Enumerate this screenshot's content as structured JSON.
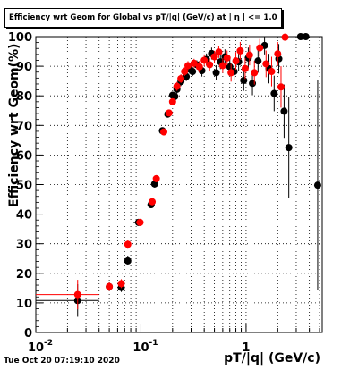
{
  "chart_data": {
    "type": "scatter",
    "title": "Efficiency wrt Geom for Global vs pT/|q| (GeV/c) at | η | <= 1.0",
    "xlabel": "pT/|q| (GeV/c)",
    "ylabel": "Efficiency wrt Geom(%)",
    "xscale": "log",
    "xlim": [
      0.01,
      5.3
    ],
    "ylim": [
      0,
      100
    ],
    "xticks": [
      {
        "value": 0.01,
        "label": "10"
      },
      {
        "value": 0.1,
        "label": "10"
      },
      {
        "value": 1,
        "label": "1"
      }
    ],
    "yticks": [
      0,
      10,
      20,
      30,
      40,
      50,
      60,
      70,
      80,
      90,
      100
    ],
    "grid": true,
    "legend": false,
    "series": [
      {
        "color": "#000000",
        "points": [
          {
            "x": 0.025,
            "y": 10.8,
            "xerr": [
              0.01,
              0.04
            ],
            "yerr": 5.5
          },
          {
            "x": 0.05,
            "y": 15.5,
            "yerr": 1.5
          },
          {
            "x": 0.065,
            "y": 15.2,
            "yerr": 1.5
          },
          {
            "x": 0.075,
            "y": 24.2,
            "yerr": 1.5
          },
          {
            "x": 0.095,
            "y": 37.2,
            "xerr": [
              0.085,
              0.105
            ],
            "yerr": 1.2
          },
          {
            "x": 0.125,
            "y": 43.2,
            "xerr": [
              0.115,
              0.135
            ],
            "yerr": 1.2
          },
          {
            "x": 0.135,
            "y": 50.2,
            "yerr": 1.2
          },
          {
            "x": 0.16,
            "y": 68.2,
            "yerr": 1.0
          },
          {
            "x": 0.18,
            "y": 73.8,
            "yerr": 1.0
          },
          {
            "x": 0.2,
            "y": 80.2,
            "yerr": 1.2
          },
          {
            "x": 0.21,
            "y": 79.8,
            "yerr": 1.2
          },
          {
            "x": 0.22,
            "y": 82.2,
            "yerr": 1.5
          },
          {
            "x": 0.24,
            "y": 84.8,
            "yerr": 1.5
          },
          {
            "x": 0.27,
            "y": 86.5,
            "yerr": 1.5
          },
          {
            "x": 0.29,
            "y": 89.0,
            "yerr": 1.5
          },
          {
            "x": 0.31,
            "y": 88.2,
            "yerr": 1.5
          },
          {
            "x": 0.34,
            "y": 90.5,
            "yerr": 1.5
          },
          {
            "x": 0.38,
            "y": 88.5,
            "yerr": 2.0
          },
          {
            "x": 0.42,
            "y": 92.3,
            "yerr": 2.0
          },
          {
            "x": 0.47,
            "y": 94.3,
            "yerr": 2.0
          },
          {
            "x": 0.52,
            "y": 87.8,
            "yerr": 2.5
          },
          {
            "x": 0.57,
            "y": 91.5,
            "yerr": 2.5
          },
          {
            "x": 0.63,
            "y": 93.2,
            "yerr": 2.5
          },
          {
            "x": 0.7,
            "y": 89.8,
            "yerr": 3.0
          },
          {
            "x": 0.77,
            "y": 88.2,
            "yerr": 3.0
          },
          {
            "x": 0.85,
            "y": 91.5,
            "yerr": 3.0
          },
          {
            "x": 0.95,
            "y": 85.2,
            "yerr": 3.5
          },
          {
            "x": 1.05,
            "y": 92.8,
            "yerr": 3.5
          },
          {
            "x": 1.15,
            "y": 84.2,
            "yerr": 4.0
          },
          {
            "x": 1.3,
            "y": 91.8,
            "yerr": 4.0
          },
          {
            "x": 1.5,
            "y": 97.0,
            "yerr": 3.0
          },
          {
            "x": 1.65,
            "y": 89.2,
            "yerr": 5.0
          },
          {
            "x": 1.85,
            "y": 80.8,
            "yerr": 6.0
          },
          {
            "x": 2.05,
            "y": 92.5,
            "yerr": 5.0
          },
          {
            "x": 2.3,
            "y": 74.8,
            "yerr": 9.0
          },
          {
            "x": 2.55,
            "y": 62.5,
            "yerr": 17.0
          },
          {
            "x": 3.3,
            "y": 100.0,
            "yerr": 0.0
          },
          {
            "x": 3.7,
            "y": 100.0,
            "yerr": 0.0
          },
          {
            "x": 4.8,
            "y": 49.8,
            "yerr": 35.5
          }
        ]
      },
      {
        "color": "#ff0000",
        "points": [
          {
            "x": 0.025,
            "y": 12.8,
            "xerr": [
              0.01,
              0.04
            ],
            "yerr": 5.0
          },
          {
            "x": 0.05,
            "y": 15.5,
            "yerr": 1.5
          },
          {
            "x": 0.065,
            "y": 16.5,
            "yerr": 1.5
          },
          {
            "x": 0.075,
            "y": 29.8,
            "yerr": 1.5
          },
          {
            "x": 0.098,
            "y": 37.2,
            "xerr": [
              0.09,
              0.106
            ],
            "yerr": 1.2
          },
          {
            "x": 0.128,
            "y": 44.2,
            "xerr": [
              0.118,
              0.138
            ],
            "yerr": 1.2
          },
          {
            "x": 0.14,
            "y": 52.0,
            "yerr": 1.2
          },
          {
            "x": 0.165,
            "y": 67.8,
            "yerr": 1.0
          },
          {
            "x": 0.185,
            "y": 74.2,
            "yerr": 1.0
          },
          {
            "x": 0.2,
            "y": 78.0,
            "yerr": 1.2
          },
          {
            "x": 0.22,
            "y": 83.2,
            "yerr": 1.5
          },
          {
            "x": 0.24,
            "y": 85.8,
            "yerr": 1.5
          },
          {
            "x": 0.26,
            "y": 88.2,
            "yerr": 1.5
          },
          {
            "x": 0.28,
            "y": 90.2,
            "yerr": 1.5
          },
          {
            "x": 0.32,
            "y": 91.0,
            "yerr": 1.5
          },
          {
            "x": 0.36,
            "y": 89.8,
            "yerr": 2.0
          },
          {
            "x": 0.4,
            "y": 92.0,
            "yerr": 2.0
          },
          {
            "x": 0.45,
            "y": 90.5,
            "yerr": 2.0
          },
          {
            "x": 0.5,
            "y": 93.2,
            "yerr": 2.0
          },
          {
            "x": 0.55,
            "y": 94.8,
            "yerr": 2.0
          },
          {
            "x": 0.6,
            "y": 90.2,
            "yerr": 2.5
          },
          {
            "x": 0.66,
            "y": 92.8,
            "yerr": 2.5
          },
          {
            "x": 0.72,
            "y": 87.8,
            "yerr": 3.0
          },
          {
            "x": 0.8,
            "y": 91.8,
            "yerr": 3.0
          },
          {
            "x": 0.88,
            "y": 95.2,
            "yerr": 3.0
          },
          {
            "x": 0.98,
            "y": 89.2,
            "yerr": 3.5
          },
          {
            "x": 1.08,
            "y": 93.8,
            "yerr": 3.5
          },
          {
            "x": 1.2,
            "y": 87.8,
            "yerr": 4.0
          },
          {
            "x": 1.35,
            "y": 96.2,
            "yerr": 3.0
          },
          {
            "x": 1.55,
            "y": 90.8,
            "yerr": 4.5
          },
          {
            "x": 1.75,
            "y": 88.2,
            "yerr": 5.0
          },
          {
            "x": 2.0,
            "y": 94.2,
            "yerr": 4.0
          },
          {
            "x": 2.15,
            "y": 83.0,
            "yerr": 7.0
          },
          {
            "x": 2.35,
            "y": 99.8,
            "yerr": 0.0
          }
        ]
      }
    ]
  },
  "footer": {
    "timestamp": "Tue Oct 20 07:19:10 2020"
  }
}
